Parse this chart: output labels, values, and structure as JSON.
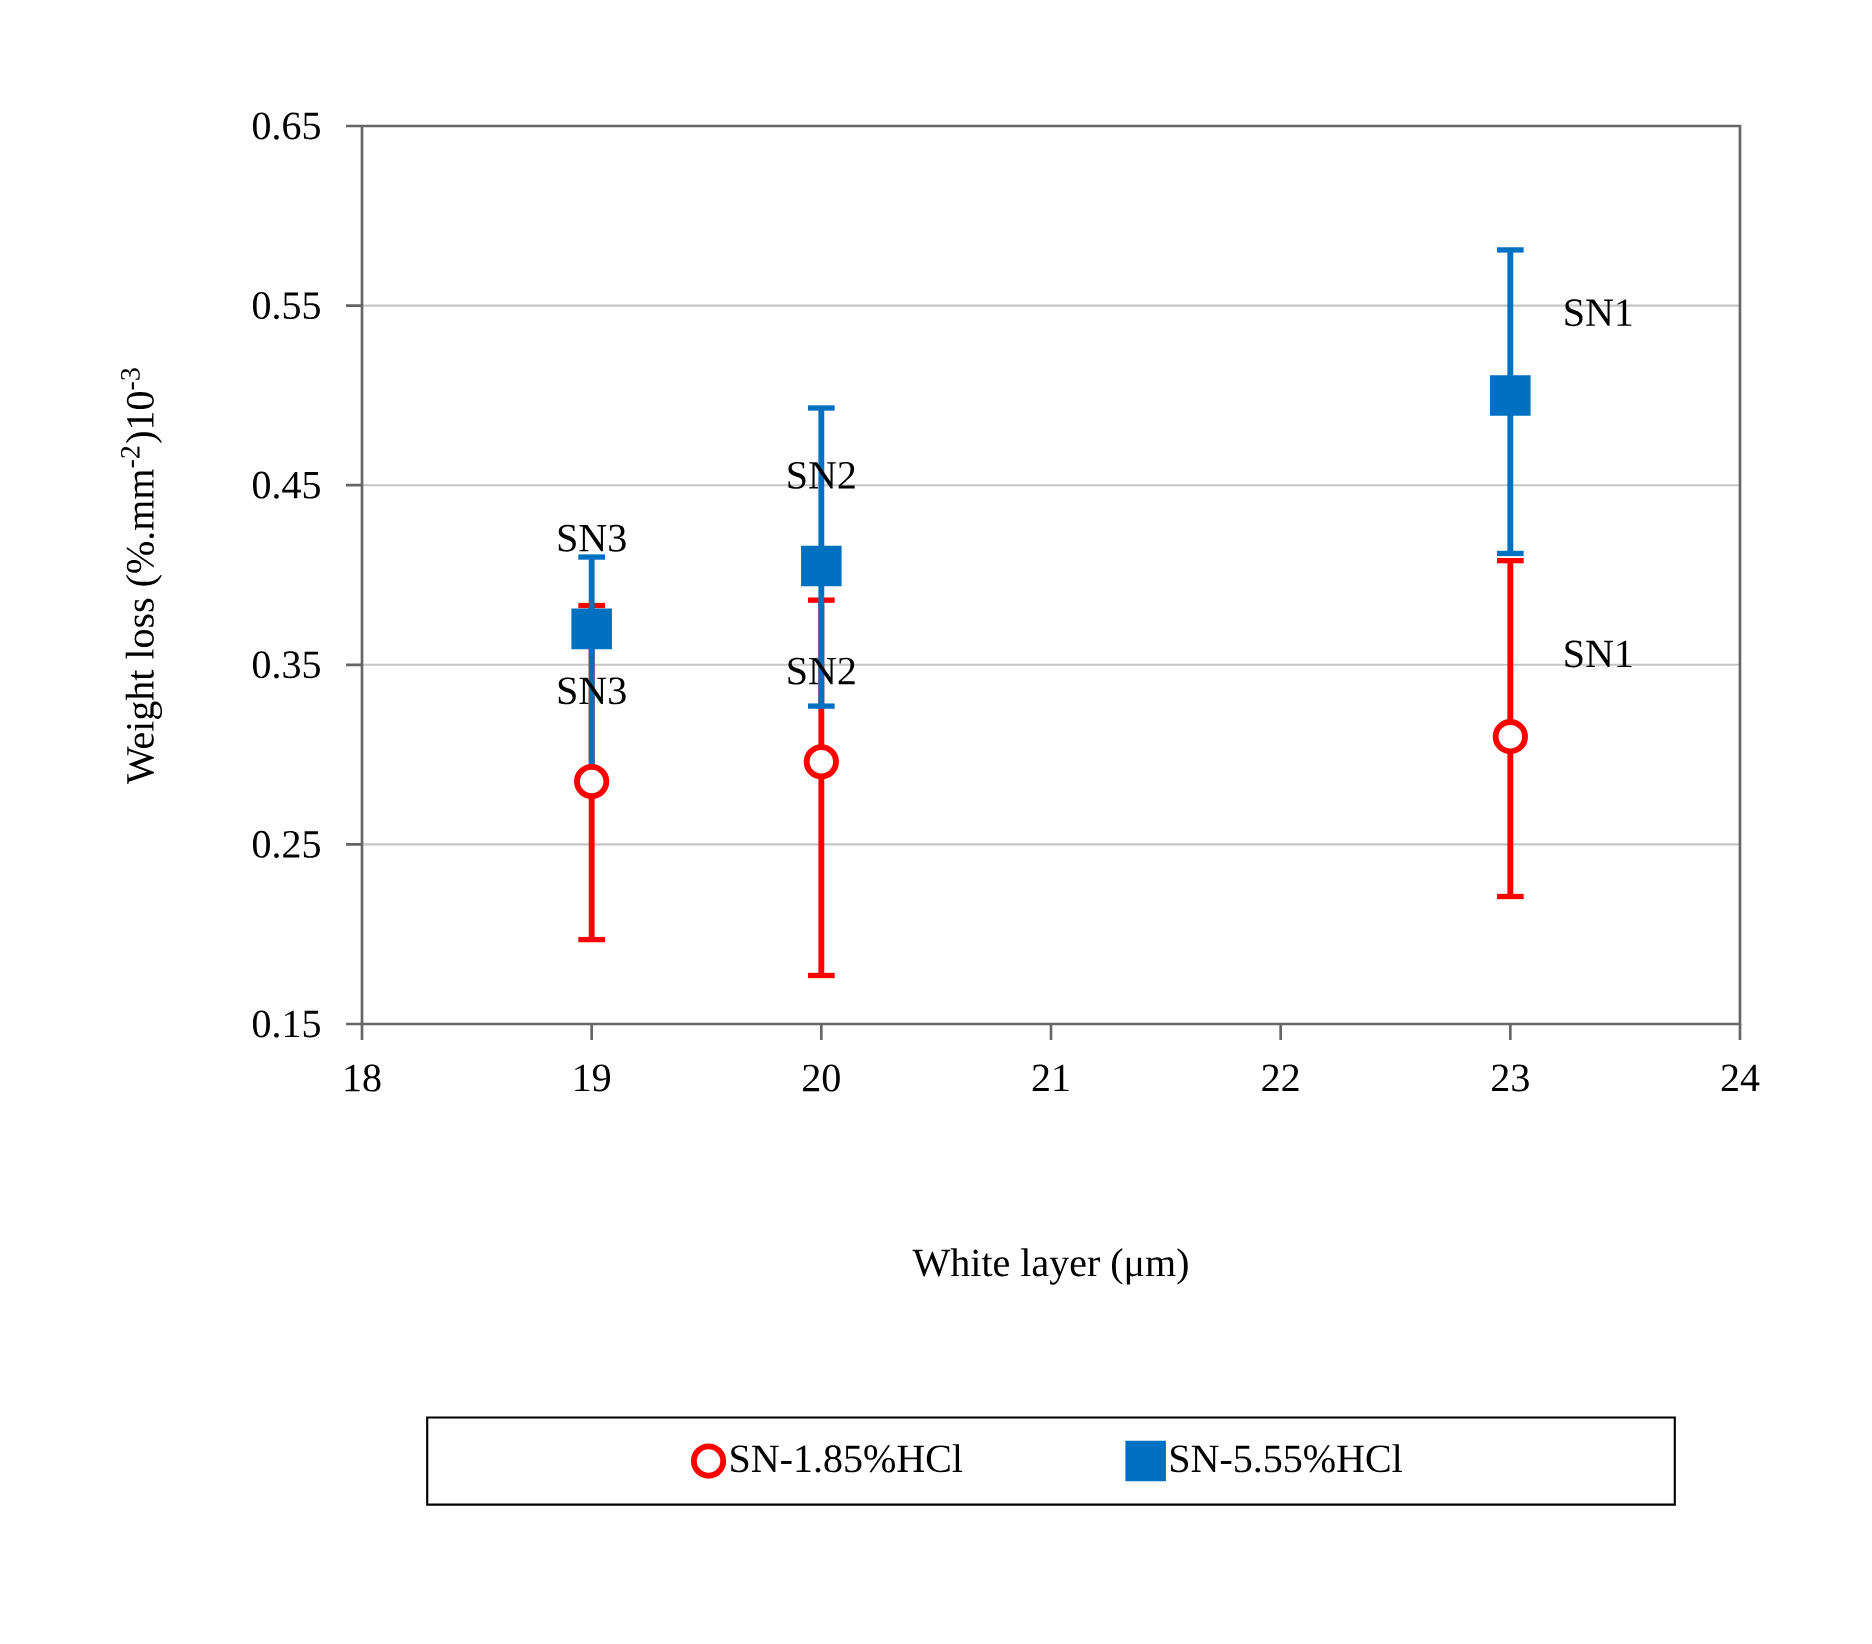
{
  "chart_data": {
    "type": "scatter",
    "xlabel": "White layer (μm)",
    "ylabel": "Weight loss (%.mm$^{-2}$)10$^{-3}$",
    "xlim": [
      18,
      24
    ],
    "xticks": [
      18,
      19,
      20,
      21,
      22,
      23,
      24
    ],
    "ylim": [
      0.15,
      0.65
    ],
    "yticks": [
      0.15,
      0.25,
      0.35,
      0.45,
      0.55,
      0.65
    ],
    "grid": "y",
    "legend": "bottom",
    "series": [
      {
        "name": "SN-1.85%HCl",
        "color": "#ff0000",
        "marker": "circle",
        "x": [
          19,
          20,
          23
        ],
        "values": [
          0.285,
          0.296,
          0.31
        ],
        "errors": [
          [
            0.197,
            0.383
          ],
          [
            0.177,
            0.386
          ],
          [
            0.221,
            0.408
          ]
        ]
      },
      {
        "name": "SN-5.55%HCl",
        "color": "#0070c0",
        "marker": "square",
        "x": [
          19,
          20,
          23
        ],
        "values": [
          0.37,
          0.405,
          0.5
        ],
        "errors": [
          [
            0.282,
            0.41
          ],
          [
            0.327,
            0.493
          ],
          [
            0.412,
            0.581
          ]
        ]
      }
    ],
    "annotations": [
      {
        "text": "SN3",
        "x": 19,
        "y": 0.37
      },
      {
        "text": "SN3",
        "x": 19,
        "y": 0.285
      },
      {
        "text": "SN2",
        "x": 20,
        "y": 0.405
      },
      {
        "text": "SN2",
        "x": 20,
        "y": 0.296
      },
      {
        "text": "SN1",
        "x": 23,
        "y": 0.5
      },
      {
        "text": "SN1",
        "x": 23,
        "y": 0.31
      }
    ]
  }
}
